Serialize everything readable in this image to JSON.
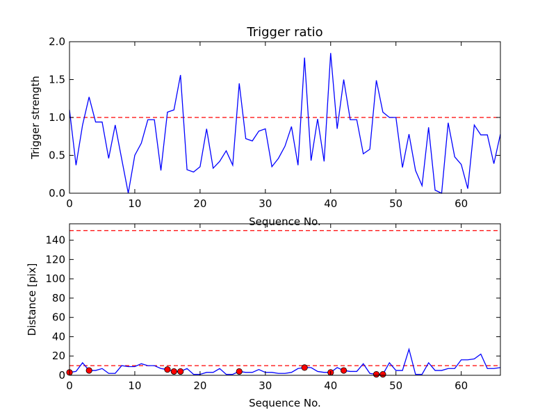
{
  "chart_data": [
    {
      "type": "line",
      "title": "Trigger ratio",
      "xlabel": "Sequence No.",
      "ylabel": "Trigger strength",
      "xlim": [
        0,
        66
      ],
      "ylim": [
        0,
        2.0
      ],
      "xticks": [
        "0",
        "10",
        "20",
        "30",
        "40",
        "50",
        "60"
      ],
      "yticks": [
        "0.0",
        "0.5",
        "1.0",
        "1.5",
        "2.0"
      ],
      "grid": false,
      "line_color": "#0000ff",
      "threshold_color": "#ff0000",
      "thresholds": [
        1.0
      ],
      "x": [
        0,
        1,
        2,
        3,
        4,
        5,
        6,
        7,
        8,
        9,
        10,
        11,
        12,
        13,
        14,
        15,
        16,
        17,
        18,
        19,
        20,
        21,
        22,
        23,
        24,
        25,
        26,
        27,
        28,
        29,
        30,
        31,
        32,
        33,
        34,
        35,
        36,
        37,
        38,
        39,
        40,
        41,
        42,
        43,
        44,
        45,
        46,
        47,
        48,
        49,
        50,
        51,
        52,
        53,
        54,
        55,
        56,
        57,
        58,
        59,
        60,
        61,
        62,
        63,
        64,
        65,
        66
      ],
      "series": [
        {
          "values": [
            1.1,
            0.37,
            0.9,
            1.27,
            0.94,
            0.94,
            0.46,
            0.9,
            0.45,
            0.0,
            0.5,
            0.66,
            0.97,
            0.97,
            0.3,
            1.07,
            1.1,
            1.56,
            0.31,
            0.28,
            0.35,
            0.85,
            0.33,
            0.42,
            0.56,
            0.37,
            1.45,
            0.72,
            0.69,
            0.82,
            0.85,
            0.35,
            0.46,
            0.62,
            0.88,
            0.37,
            1.79,
            0.43,
            0.98,
            0.42,
            1.85,
            0.85,
            1.5,
            0.97,
            0.97,
            0.52,
            0.58,
            1.49,
            1.07,
            1.0,
            1.0,
            0.34,
            0.78,
            0.3,
            0.1,
            0.87,
            0.04,
            0.0,
            0.93,
            0.48,
            0.38,
            0.06,
            0.9,
            0.77,
            0.77,
            0.39,
            0.78
          ]
        }
      ]
    },
    {
      "type": "line",
      "title": "",
      "xlabel": "Sequence No.",
      "ylabel": "Distance [pix]",
      "xlim": [
        0,
        66
      ],
      "ylim": [
        0,
        157
      ],
      "xticks": [
        "0",
        "10",
        "20",
        "30",
        "40",
        "50",
        "60"
      ],
      "yticks": [
        "0",
        "20",
        "40",
        "60",
        "80",
        "100",
        "120",
        "140"
      ],
      "grid": false,
      "line_color": "#0000ff",
      "marker_color": "#ff0000",
      "threshold_color": "#ff0000",
      "thresholds": [
        150,
        10
      ],
      "x": [
        0,
        1,
        2,
        3,
        4,
        5,
        6,
        7,
        8,
        9,
        10,
        11,
        12,
        13,
        14,
        15,
        16,
        17,
        18,
        19,
        20,
        21,
        22,
        23,
        24,
        25,
        26,
        27,
        28,
        29,
        30,
        31,
        32,
        33,
        34,
        35,
        36,
        37,
        38,
        39,
        40,
        41,
        42,
        43,
        44,
        45,
        46,
        47,
        48,
        49,
        50,
        51,
        52,
        53,
        54,
        55,
        56,
        57,
        58,
        59,
        60,
        61,
        62,
        63,
        64,
        65,
        66
      ],
      "series": [
        {
          "values": [
            3,
            4,
            13,
            5,
            5,
            7,
            2,
            2,
            10,
            9,
            9,
            12,
            10,
            10,
            7,
            6,
            4,
            4,
            7,
            1,
            1,
            3,
            3,
            7,
            1,
            1,
            4,
            3,
            3,
            6,
            3,
            3,
            2,
            2,
            3,
            7,
            8,
            8,
            4,
            3,
            3,
            8,
            5,
            4,
            4,
            12,
            2,
            1,
            1,
            13,
            5,
            5,
            27,
            1,
            1,
            13,
            5,
            5,
            7,
            7,
            16,
            16,
            17,
            22,
            7,
            7,
            8
          ]
        }
      ],
      "markers": [
        {
          "x": 0,
          "y": 3
        },
        {
          "x": 3,
          "y": 5
        },
        {
          "x": 15,
          "y": 6
        },
        {
          "x": 16,
          "y": 4
        },
        {
          "x": 17,
          "y": 4
        },
        {
          "x": 26,
          "y": 4
        },
        {
          "x": 36,
          "y": 8
        },
        {
          "x": 40,
          "y": 3
        },
        {
          "x": 42,
          "y": 5
        },
        {
          "x": 47,
          "y": 1
        },
        {
          "x": 48,
          "y": 1
        }
      ]
    }
  ]
}
